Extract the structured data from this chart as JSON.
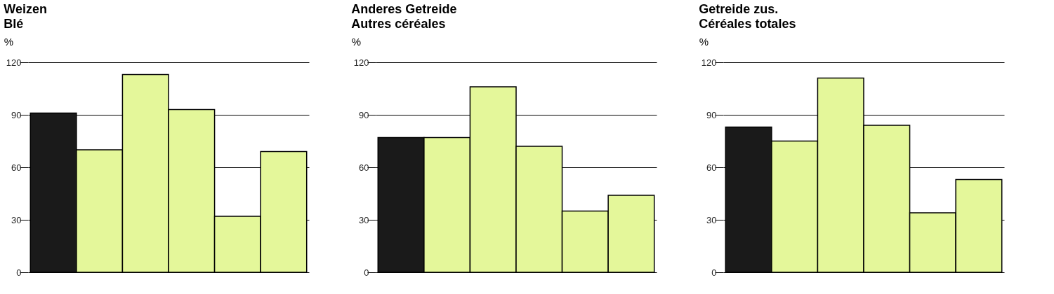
{
  "chart_data": [
    {
      "type": "bar",
      "title": "Weizen",
      "subtitle": "Blé",
      "ylabel": "%",
      "categories": [
        null,
        null,
        null,
        null,
        null,
        null
      ],
      "values": [
        91,
        70,
        113,
        93,
        32,
        69
      ],
      "colors": [
        "#1a1a1a",
        "#e4f79a",
        "#e4f79a",
        "#e4f79a",
        "#e4f79a",
        "#e4f79a"
      ],
      "ylim": [
        0,
        120
      ],
      "yticks": [
        0,
        30,
        60,
        90,
        120
      ],
      "grid": "y"
    },
    {
      "type": "bar",
      "title": "Anderes Getreide",
      "subtitle": "Autres céréales",
      "ylabel": "%",
      "categories": [
        null,
        null,
        null,
        null,
        null,
        null
      ],
      "values": [
        77,
        77,
        106,
        72,
        35,
        44
      ],
      "colors": [
        "#1a1a1a",
        "#e4f79a",
        "#e4f79a",
        "#e4f79a",
        "#e4f79a",
        "#e4f79a"
      ],
      "ylim": [
        0,
        120
      ],
      "yticks": [
        0,
        30,
        60,
        90,
        120
      ],
      "grid": "y"
    },
    {
      "type": "bar",
      "title": "Getreide zus.",
      "subtitle": "Céréales totales",
      "ylabel": "%",
      "categories": [
        null,
        null,
        null,
        null,
        null,
        null
      ],
      "values": [
        83,
        75,
        111,
        84,
        34,
        53
      ],
      "colors": [
        "#1a1a1a",
        "#e4f79a",
        "#e4f79a",
        "#e4f79a",
        "#e4f79a",
        "#e4f79a"
      ],
      "ylim": [
        0,
        120
      ],
      "yticks": [
        0,
        30,
        60,
        90,
        120
      ],
      "grid": "y"
    }
  ]
}
